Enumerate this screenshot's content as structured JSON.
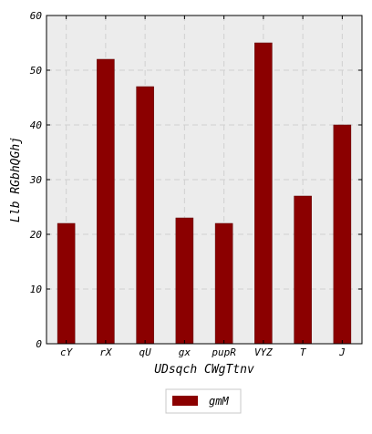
{
  "chart_data": {
    "type": "bar",
    "categories": [
      "cY",
      "rX",
      "qU",
      "gx",
      "pupR",
      "VYZ",
      "T",
      "J"
    ],
    "series": [
      {
        "name": "gmM",
        "values": [
          22,
          52,
          47,
          23,
          22,
          55,
          27,
          40
        ]
      }
    ],
    "xlabel": "UDsqch CWgTtnv",
    "ylabel": "Llb RGbhQGhj",
    "ylim": [
      0,
      60
    ],
    "yticks": [
      0,
      10,
      20,
      30,
      40,
      50,
      60
    ],
    "grid": true,
    "legend": "bottom-center",
    "colors": {
      "bar": "#8b0000",
      "plot_bg": "#ececec",
      "grid": "#d0d0d0"
    }
  }
}
